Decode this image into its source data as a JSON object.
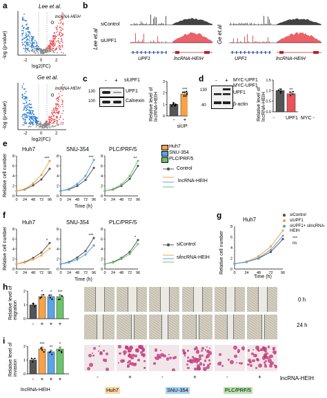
{
  "panels": {
    "a": "a",
    "b": "b",
    "c": "c",
    "d": "d",
    "e": "e",
    "f": "f",
    "g": "g",
    "h": "h",
    "i": "i"
  },
  "volcano": {
    "top_title": "Lee et al.",
    "bottom_title": "Ge et al.",
    "ylabel": "-log (p-value)",
    "xlabel": "log2(FC)",
    "xticks": [
      "-2",
      "0",
      "2"
    ],
    "top_yticks": [
      "30",
      "20",
      "10",
      "0"
    ],
    "bottom_yticks": [
      "60",
      "40",
      "20",
      "0"
    ],
    "highlight": "lncRNA-HEIH",
    "colors": {
      "down": "#2f7fd0",
      "up": "#e8545a",
      "ns": "#8c8c8c"
    }
  },
  "tracks": {
    "left_study": "Lee et.al",
    "right_study": "Ge et.al",
    "rows": [
      "siControl",
      "siUPF1"
    ],
    "genes": [
      "UPF1",
      "lncRNA-HEIH"
    ],
    "colors": {
      "control": "#333333",
      "knockdown": "#e8545a"
    }
  },
  "panel_c": {
    "cols": [
      "-",
      "+"
    ],
    "header": "siUPF1",
    "bands": [
      "UPF1",
      "Calnexin"
    ],
    "mw": [
      "130",
      "100"
    ],
    "ylabel": "Relative level of lncRNA-HEIH",
    "yticks": [
      "3",
      "2",
      "1",
      "0"
    ],
    "sig": "***",
    "xlabels": [
      "-",
      "+"
    ],
    "xname": "siUPF1"
  },
  "panel_d": {
    "cols": [
      "-",
      "+"
    ],
    "header": "MYC-UPF1",
    "bands": [
      "MYC-UPF1",
      "UPF1",
      "β-actin"
    ],
    "mw": [
      "130",
      "40"
    ],
    "ylabel": "Relative level of lncRNA-HEIH",
    "yticks": [
      "1.5",
      "1.0",
      "0.5",
      "0.0"
    ],
    "sig": "**",
    "xlabels": [
      "-",
      "UPF1",
      "MYC -"
    ]
  },
  "growth_axis": {
    "ylabel": "Relative cell number",
    "xlabel": "Time (h)",
    "xticks": [
      "0",
      "24",
      "48",
      "72",
      "96"
    ],
    "yticks": [
      "8",
      "6",
      "4",
      "2",
      "0"
    ]
  },
  "panel_e": {
    "cells": [
      "Huh7",
      "SNU-354",
      "PLC/PRF/5"
    ],
    "sig": [
      "***",
      "***",
      "**"
    ],
    "legend": [
      "Huh7",
      "SNU-354",
      "PLC/PRF/5"
    ],
    "legend2": [
      "Control",
      "lncRNA-HEIH"
    ]
  },
  "panel_f": {
    "cells": [
      "Huh7",
      "SNU-354",
      "PLC/PRF/5"
    ],
    "sig": [
      "*",
      "***",
      "*"
    ],
    "legend": [
      "siControl",
      "silncRNA-HEIH"
    ]
  },
  "panel_g": {
    "cell": "Huh7",
    "legend": [
      "siControl",
      "siUPF1",
      "siUPF1+ silncRNA-HEIH"
    ],
    "sig": [
      "***",
      "ns"
    ]
  },
  "panel_h": {
    "ylabel": "Relative level of migration",
    "yticks": [
      "2",
      "1",
      "0"
    ],
    "sig": [
      "*",
      "*",
      "***"
    ],
    "xsigns": [
      "-",
      "+",
      "-",
      "+",
      "-",
      "+"
    ],
    "timepoints": [
      "0 h",
      "24 h"
    ]
  },
  "panel_i": {
    "ylabel": "Relative level of invasion",
    "yticks": [
      "2",
      "1",
      "0"
    ],
    "sig": [
      "***",
      "**",
      "*"
    ],
    "xsigns": [
      "-",
      "+",
      "-",
      "+",
      "-",
      "+"
    ],
    "xname": "lncRNA-HEIH",
    "cells": [
      "Huh7",
      "SNU-354",
      "PLC/PRF/5"
    ],
    "rowname": "lncRNA-HEIH"
  },
  "colors": {
    "control": "#555555",
    "huh7": "#f5a34a",
    "snu354": "#5aa4e6",
    "plc": "#6cc56c",
    "tag_huh7": "#fcd9a4",
    "tag_snu": "#a9d3f3",
    "tag_plc": "#b7e4ae"
  },
  "chart_data": [
    {
      "type": "bar",
      "title": "c",
      "categories": [
        "-",
        "+"
      ],
      "values": [
        1.0,
        1.9
      ],
      "ylabel": "Relative level of lncRNA-HEIH",
      "ylim": [
        0,
        3
      ]
    },
    {
      "type": "bar",
      "title": "d",
      "categories": [
        "-",
        "UPF1"
      ],
      "values": [
        1.0,
        0.85
      ],
      "ylabel": "Relative level of lncRNA-HEIH",
      "ylim": [
        0,
        1.5
      ]
    },
    {
      "type": "line",
      "title": "e",
      "x": [
        0,
        24,
        48,
        72,
        96
      ],
      "panels": [
        {
          "name": "Huh7",
          "series": [
            {
              "name": "Control",
              "values": [
                1,
                1.3,
                2.1,
                3.3,
                5.4
              ]
            },
            {
              "name": "lncRNA-HEIH",
              "values": [
                1,
                1.4,
                2.5,
                4.2,
                7.0
              ]
            }
          ]
        },
        {
          "name": "SNU-354",
          "series": [
            {
              "name": "Control",
              "values": [
                1,
                1.3,
                2.0,
                3.2,
                5.6
              ]
            },
            {
              "name": "lncRNA-HEIH",
              "values": [
                1,
                1.4,
                2.4,
                4.0,
                7.2
              ]
            }
          ]
        },
        {
          "name": "PLC/PRF/5",
          "series": [
            {
              "name": "Control",
              "values": [
                1,
                1.3,
                2.0,
                3.4,
                6.0
              ]
            },
            {
              "name": "lncRNA-HEIH",
              "values": [
                1,
                1.4,
                2.3,
                4.0,
                7.0
              ]
            }
          ]
        }
      ],
      "ylabel": "Relative cell number",
      "xlabel": "Time (h)",
      "ylim": [
        0,
        8
      ]
    },
    {
      "type": "line",
      "title": "f",
      "x": [
        0,
        24,
        48,
        72,
        96
      ],
      "panels": [
        {
          "name": "Huh7",
          "series": [
            {
              "name": "siControl",
              "values": [
                1,
                1.4,
                2.2,
                3.3,
                5.2
              ]
            },
            {
              "name": "silncRNA-HEIH",
              "values": [
                1,
                1.3,
                1.9,
                2.7,
                4.1
              ]
            }
          ]
        },
        {
          "name": "SNU-354",
          "series": [
            {
              "name": "siControl",
              "values": [
                1,
                1.4,
                2.3,
                3.6,
                6.2
              ]
            },
            {
              "name": "silncRNA-HEIH",
              "values": [
                1,
                1.3,
                1.9,
                2.9,
                4.7
              ]
            }
          ]
        },
        {
          "name": "PLC/PRF/5",
          "series": [
            {
              "name": "siControl",
              "values": [
                1,
                1.4,
                2.2,
                3.4,
                5.8
              ]
            },
            {
              "name": "silncRNA-HEIH",
              "values": [
                1,
                1.3,
                2.0,
                3.0,
                5.0
              ]
            }
          ]
        }
      ],
      "ylabel": "Relative cell number",
      "xlabel": "Time (h)",
      "ylim": [
        0,
        8
      ]
    },
    {
      "type": "line",
      "title": "g",
      "x": [
        0,
        24,
        48,
        72,
        96
      ],
      "series": [
        {
          "name": "siControl",
          "values": [
            1,
            1.3,
            2.0,
            3.2,
            5.6
          ]
        },
        {
          "name": "siUPF1",
          "values": [
            1,
            1.4,
            2.4,
            4.2,
            7.2
          ]
        },
        {
          "name": "siUPF1+ silncRNA-HEIH",
          "values": [
            1,
            1.3,
            2.1,
            3.6,
            6.2
          ]
        }
      ],
      "ylabel": "Relative cell number",
      "xlabel": "Time (h)",
      "ylim": [
        0,
        8
      ]
    },
    {
      "type": "bar",
      "title": "h",
      "categories": [
        "-",
        "+",
        "-",
        "+",
        "-",
        "+"
      ],
      "values": [
        1.0,
        1.6,
        1.5,
        1.6,
        1.4,
        1.6
      ],
      "ylabel": "Relative level of migration",
      "ylim": [
        0,
        2
      ]
    },
    {
      "type": "bar",
      "title": "i",
      "categories": [
        "-",
        "+",
        "-",
        "+",
        "-",
        "+"
      ],
      "values": [
        1.0,
        1.8,
        1.8,
        1.6,
        1.7,
        1.8
      ],
      "ylabel": "Relative level of invasion",
      "ylim": [
        0,
        2
      ]
    }
  ]
}
